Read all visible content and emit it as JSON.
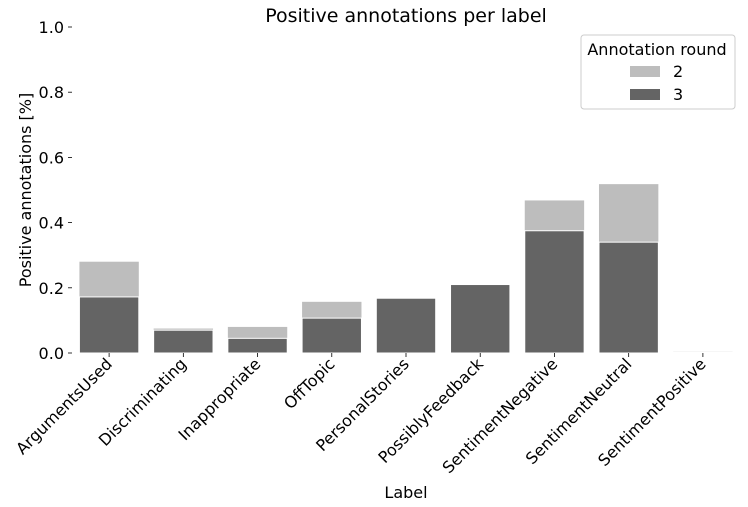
{
  "chart_data": {
    "type": "bar",
    "stacked": true,
    "title": "Positive annotations per label",
    "xlabel": "Label",
    "ylabel": "Positive annotations [%]",
    "ylim": [
      0,
      1.0
    ],
    "yticks": [
      "0.0",
      "0.2",
      "0.4",
      "0.6",
      "0.8",
      "1.0"
    ],
    "grid": false,
    "legend": {
      "title": "Annotation round",
      "placement": "top-right"
    },
    "categories": [
      "ArgumentsUsed",
      "Discriminating",
      "Inappropriate",
      "OffTopic",
      "PersonalStories",
      "PossiblyFeedback",
      "SentimentNegative",
      "SentimentNeutral",
      "SentimentPositive"
    ],
    "series": [
      {
        "name": "2",
        "color": "#bdbdbd",
        "values": [
          0.28,
          0.075,
          0.08,
          0.157,
          0.168,
          0.21,
          0.468,
          0.518,
          0.005
        ]
      },
      {
        "name": "3",
        "color": "#646464",
        "values": [
          0.172,
          0.07,
          0.045,
          0.107,
          0.168,
          0.21,
          0.375,
          0.34,
          0.003
        ]
      }
    ]
  }
}
